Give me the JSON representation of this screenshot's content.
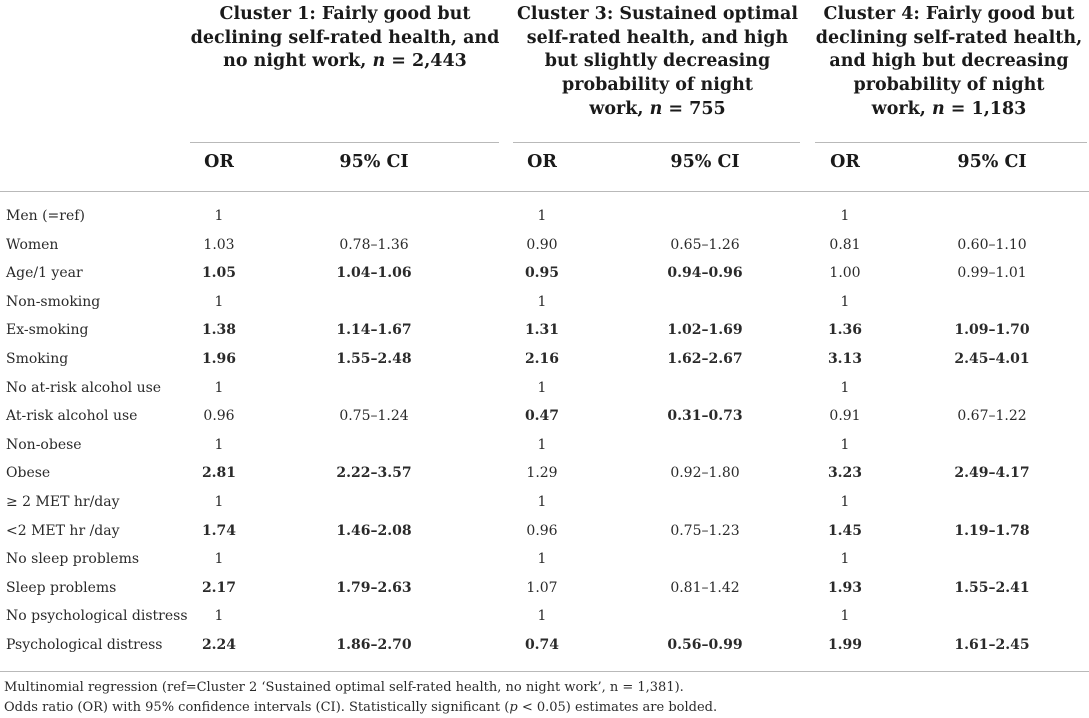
{
  "clusters": [
    {
      "pre": "Cluster 1: Fairly good but",
      "line2": "declining self-rated health, and",
      "line3": "no night work, ",
      "n_label": "n",
      "n_value": " = 2,443"
    },
    {
      "pre": "Cluster 3: Sustained optimal",
      "line2": "self-rated health, and high",
      "line3": "but slightly decreasing",
      "line4": "probability of night",
      "line5": "work, ",
      "n_label": "n",
      "n_value": " = 755"
    },
    {
      "pre": "Cluster 4: Fairly good but",
      "line2": "declining self-rated health,",
      "line3": "and high but decreasing",
      "line4": "probability of night",
      "line5": "work, ",
      "n_label": "n",
      "n_value": " = 1,183"
    }
  ],
  "subheaders": {
    "or": "OR",
    "ci": "95% CI"
  },
  "rows": [
    {
      "label": "Men (=ref)",
      "c1": {
        "or": "1",
        "ci": "",
        "b": false
      },
      "c3": {
        "or": "1",
        "ci": "",
        "b": false
      },
      "c4": {
        "or": "1",
        "ci": "",
        "b": false
      }
    },
    {
      "label": "Women",
      "c1": {
        "or": "1.03",
        "ci": "0.78–1.36",
        "b": false
      },
      "c3": {
        "or": "0.90",
        "ci": "0.65–1.26",
        "b": false
      },
      "c4": {
        "or": "0.81",
        "ci": "0.60–1.10",
        "b": false
      }
    },
    {
      "label": "Age/1 year",
      "c1": {
        "or": "1.05",
        "ci": "1.04–1.06",
        "b": true
      },
      "c3": {
        "or": "0.95",
        "ci": "0.94–0.96",
        "b": true
      },
      "c4": {
        "or": "1.00",
        "ci": "0.99–1.01",
        "b": false
      }
    },
    {
      "label": "Non-smoking",
      "c1": {
        "or": "1",
        "ci": "",
        "b": false
      },
      "c3": {
        "or": "1",
        "ci": "",
        "b": false
      },
      "c4": {
        "or": "1",
        "ci": "",
        "b": false
      }
    },
    {
      "label": "Ex-smoking",
      "c1": {
        "or": "1.38",
        "ci": "1.14–1.67",
        "b": true
      },
      "c3": {
        "or": "1.31",
        "ci": "1.02–1.69",
        "b": true
      },
      "c4": {
        "or": "1.36",
        "ci": "1.09–1.70",
        "b": true
      }
    },
    {
      "label": "Smoking",
      "c1": {
        "or": "1.96",
        "ci": "1.55–2.48",
        "b": true
      },
      "c3": {
        "or": "2.16",
        "ci": "1.62–2.67",
        "b": true
      },
      "c4": {
        "or": "3.13",
        "ci": "2.45–4.01",
        "b": true
      }
    },
    {
      "label": "No at-risk alcohol use",
      "c1": {
        "or": "1",
        "ci": "",
        "b": false
      },
      "c3": {
        "or": "1",
        "ci": "",
        "b": false
      },
      "c4": {
        "or": "1",
        "ci": "",
        "b": false
      }
    },
    {
      "label": "At-risk alcohol use",
      "c1": {
        "or": "0.96",
        "ci": "0.75–1.24",
        "b": false
      },
      "c3": {
        "or": "0.47",
        "ci": "0.31–0.73",
        "b": true
      },
      "c4": {
        "or": "0.91",
        "ci": "0.67–1.22",
        "b": false
      }
    },
    {
      "label": "Non-obese",
      "c1": {
        "or": "1",
        "ci": "",
        "b": false
      },
      "c3": {
        "or": "1",
        "ci": "",
        "b": false
      },
      "c4": {
        "or": "1",
        "ci": "",
        "b": false
      }
    },
    {
      "label": "Obese",
      "c1": {
        "or": "2.81",
        "ci": "2.22–3.57",
        "b": true
      },
      "c3": {
        "or": "1.29",
        "ci": "0.92–1.80",
        "b": false
      },
      "c4": {
        "or": "3.23",
        "ci": "2.49–4.17",
        "b": true
      }
    },
    {
      "label": "≥ 2 MET hr/day",
      "c1": {
        "or": "1",
        "ci": "",
        "b": false
      },
      "c3": {
        "or": "1",
        "ci": "",
        "b": false
      },
      "c4": {
        "or": "1",
        "ci": "",
        "b": false
      }
    },
    {
      "label": "<2 MET hr /day",
      "c1": {
        "or": "1.74",
        "ci": "1.46–2.08",
        "b": true
      },
      "c3": {
        "or": "0.96",
        "ci": "0.75–1.23",
        "b": false
      },
      "c4": {
        "or": "1.45",
        "ci": "1.19–1.78",
        "b": true
      }
    },
    {
      "label": "No sleep problems",
      "c1": {
        "or": "1",
        "ci": "",
        "b": false
      },
      "c3": {
        "or": "1",
        "ci": "",
        "b": false
      },
      "c4": {
        "or": "1",
        "ci": "",
        "b": false
      }
    },
    {
      "label": "Sleep problems",
      "c1": {
        "or": "2.17",
        "ci": "1.79–2.63",
        "b": true
      },
      "c3": {
        "or": "1.07",
        "ci": "0.81–1.42",
        "b": false
      },
      "c4": {
        "or": "1.93",
        "ci": "1.55–2.41",
        "b": true
      }
    },
    {
      "label": "No psychological distress",
      "c1": {
        "or": "1",
        "ci": "",
        "b": false
      },
      "c3": {
        "or": "1",
        "ci": "",
        "b": false
      },
      "c4": {
        "or": "1",
        "ci": "",
        "b": false
      }
    },
    {
      "label": "Psychological distress",
      "c1": {
        "or": "2.24",
        "ci": "1.86–2.70",
        "b": true
      },
      "c3": {
        "or": "0.74",
        "ci": "0.56–0.99",
        "b": true
      },
      "c4": {
        "or": "1.99",
        "ci": "1.61–2.45",
        "b": true
      }
    }
  ],
  "footnotes": {
    "line1": "Multinomial regression (ref=Cluster 2 ‘Sustained optimal self-rated health, no night work’, n = 1,381).",
    "line2_pre": "Odds ratio (OR) with 95% confidence intervals (CI). Statistically significant (",
    "line2_p": "p",
    "line2_post": " < 0.05) estimates are bolded."
  }
}
